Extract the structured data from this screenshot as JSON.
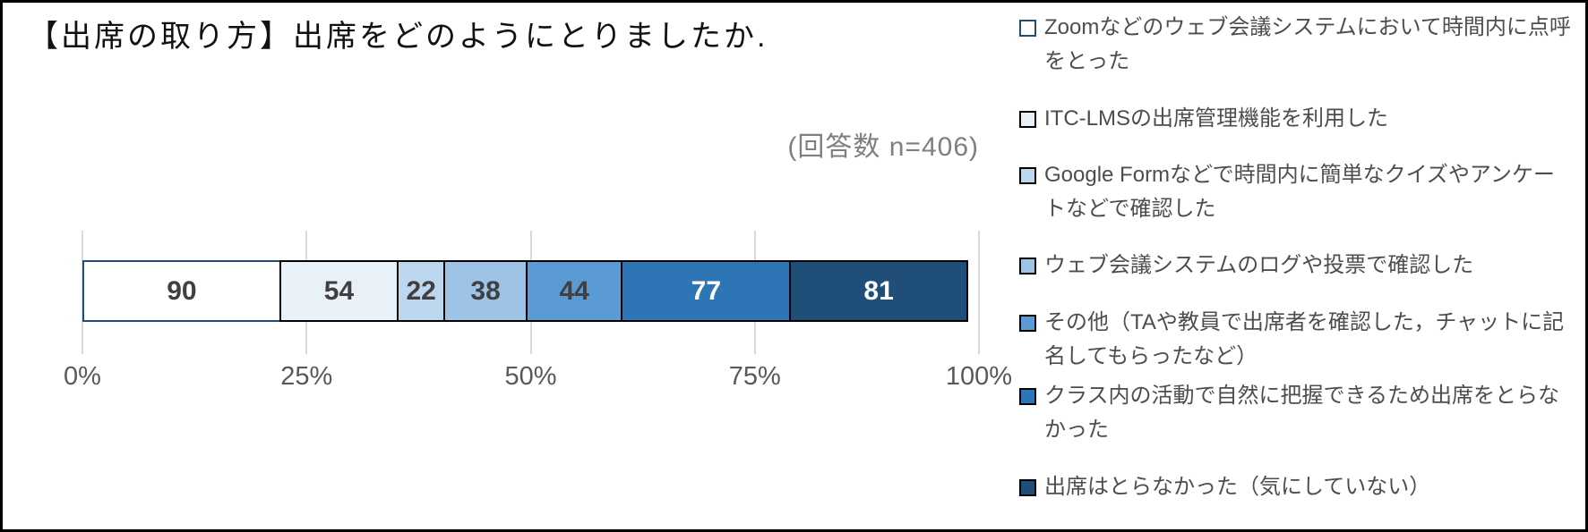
{
  "title": "【出席の取り方】出席をどのようにとりましたか.",
  "annotation": "(回答数 n=406)",
  "chart_data": {
    "type": "bar",
    "variant": "horizontal-stacked-100percent",
    "title": "【出席の取り方】出席をどのようにとりましたか.",
    "annotation": "(回答数 n=406)",
    "total": 406,
    "xlim": [
      0,
      100
    ],
    "x_ticks": [
      "0%",
      "25%",
      "50%",
      "75%",
      "100%"
    ],
    "grid": true,
    "legend_position": "right",
    "series": [
      {
        "name": "Zoomなどのウェブ会議システムにおいて時間内に点呼をとった",
        "value": 90,
        "fill": "#FFFFFF",
        "border": "#1F4E79",
        "label_color": "#404040"
      },
      {
        "name": "ITC-LMSの出席管理機能を利用した",
        "value": 54,
        "fill": "#E8F1F8",
        "border": "#000000",
        "label_color": "#404040"
      },
      {
        "name": "Google Formなどで時間内に簡単なクイズやアンケートなどで確認した",
        "value": 22,
        "fill": "#BDD7EE",
        "border": "#000000",
        "label_color": "#404040"
      },
      {
        "name": "ウェブ会議システムのログや投票で確認した",
        "value": 38,
        "fill": "#9DC3E6",
        "border": "#000000",
        "label_color": "#404040"
      },
      {
        "name": "その他（TAや教員で出席者を確認した，チャットに記名してもらったなど）",
        "value": 44,
        "fill": "#5B9BD5",
        "border": "#000000",
        "label_color": "#404040"
      },
      {
        "name": "クラス内の活動で自然に把握できるため出席をとらなかった",
        "value": 77,
        "fill": "#2E75B6",
        "border": "#000000",
        "label_color": "#FFFFFF"
      },
      {
        "name": "出席はとらなかった（気にしていない）",
        "value": 81,
        "fill": "#1F4E79",
        "border": "#000000",
        "label_color": "#FFFFFF"
      }
    ],
    "colors": {
      "gridline": "#D9D9D9",
      "axis_label": "#595959",
      "annotation_text": "#7F7F7F",
      "title_text": "#111111",
      "legend_text": "#4D4D4D",
      "background": "#FFFFFF",
      "frame_border": "#000000"
    }
  }
}
